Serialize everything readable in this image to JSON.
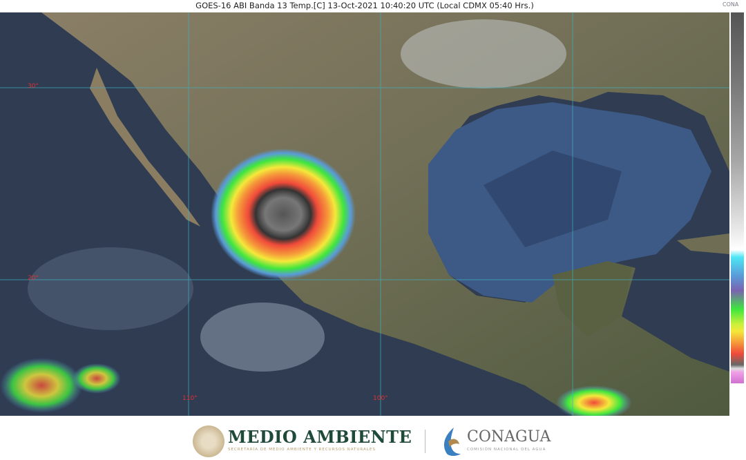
{
  "header": {
    "title": "GOES-16 ABI Banda 13 Temp.[C] 13-Oct-2021 10:40:20 UTC (Local CDMX  05:40 Hrs.)",
    "corner_logo": "CONA"
  },
  "map": {
    "grid_labels": {
      "lat_30": "30°",
      "lat_20": "20°",
      "lon_110": "110°",
      "lon_100": "100°"
    },
    "colors": {
      "ocean": "#2f3c52",
      "land": "#6b6a52",
      "gulf": "#3d5a86",
      "storm_core": "#f04a3a"
    }
  },
  "colorbar": {
    "scale": "temperature-color-scale"
  },
  "footer": {
    "medio_ambiente": "MEDIO AMBIENTE",
    "medio_ambiente_sub": "SECRETARÍA DE MEDIO AMBIENTE Y RECURSOS NATURALES",
    "conagua": "CONAGUA",
    "conagua_sub": "COMISIÓN NACIONAL DEL AGUA"
  }
}
